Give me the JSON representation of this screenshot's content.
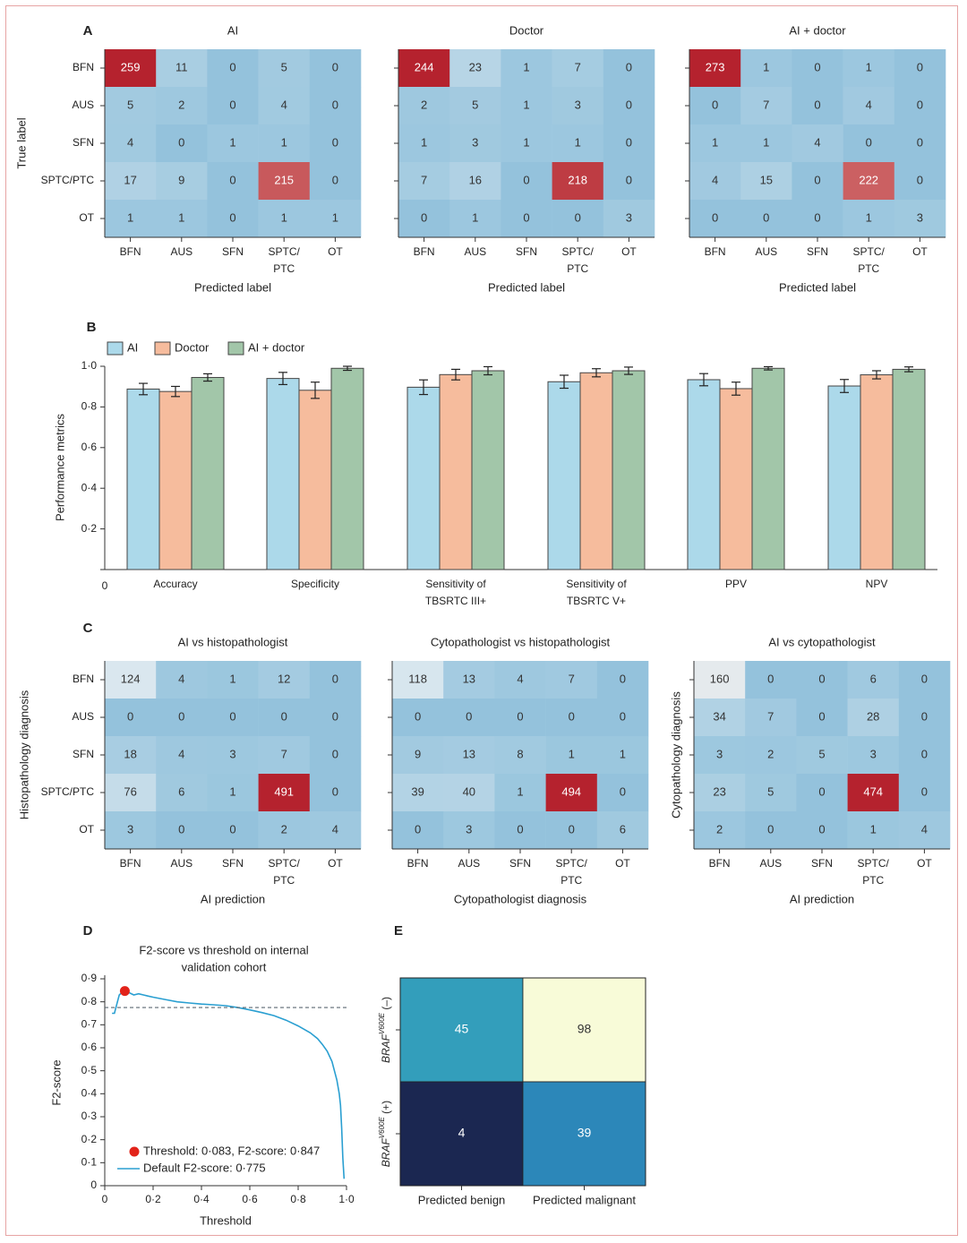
{
  "panel_letters": [
    "A",
    "B",
    "C",
    "D",
    "E"
  ],
  "chart_data": [
    {
      "type": "heatmap",
      "panel": "A",
      "title": "AI",
      "xlabel": "Predicted label",
      "ylabel": "True label",
      "x_categories": [
        "BFN",
        "AUS",
        "SFN",
        "SPTC/ PTC",
        "OT"
      ],
      "y_categories": [
        "BFN",
        "AUS",
        "SFN",
        "SPTC/PTC",
        "OT"
      ],
      "values": [
        [
          259,
          11,
          0,
          5,
          0
        ],
        [
          5,
          2,
          0,
          4,
          0
        ],
        [
          4,
          0,
          1,
          1,
          0
        ],
        [
          17,
          9,
          0,
          215,
          0
        ],
        [
          1,
          1,
          0,
          1,
          1
        ]
      ]
    },
    {
      "type": "heatmap",
      "panel": "A",
      "title": "Doctor",
      "xlabel": "Predicted label",
      "ylabel": "",
      "x_categories": [
        "BFN",
        "AUS",
        "SFN",
        "SPTC/ PTC",
        "OT"
      ],
      "y_categories": [],
      "values": [
        [
          244,
          23,
          1,
          7,
          0
        ],
        [
          2,
          5,
          1,
          3,
          0
        ],
        [
          1,
          3,
          1,
          1,
          0
        ],
        [
          7,
          16,
          0,
          218,
          0
        ],
        [
          0,
          1,
          0,
          0,
          3
        ]
      ]
    },
    {
      "type": "heatmap",
      "panel": "A",
      "title": "AI + doctor",
      "xlabel": "Predicted label",
      "ylabel": "",
      "x_categories": [
        "BFN",
        "AUS",
        "SFN",
        "SPTC/ PTC",
        "OT"
      ],
      "y_categories": [],
      "values": [
        [
          273,
          1,
          0,
          1,
          0
        ],
        [
          0,
          7,
          0,
          4,
          0
        ],
        [
          1,
          1,
          4,
          0,
          0
        ],
        [
          4,
          15,
          0,
          222,
          0
        ],
        [
          0,
          0,
          0,
          1,
          3
        ]
      ]
    },
    {
      "type": "bar",
      "panel": "B",
      "ylabel": "Performance metrics",
      "categories": [
        "Accuracy",
        "Specificity",
        "Sensitivity of TBSRTC III+",
        "Sensitivity of TBSRTC V+",
        "PPV",
        "NPV"
      ],
      "series": [
        {
          "name": "AI",
          "color": "#acd9ea",
          "values": [
            0.888,
            0.94,
            0.897,
            0.924,
            0.934,
            0.903
          ],
          "error": [
            0.028,
            0.03,
            0.036,
            0.032,
            0.03,
            0.032
          ]
        },
        {
          "name": "Doctor",
          "color": "#f6bc9d",
          "values": [
            0.876,
            0.882,
            0.959,
            0.968,
            0.89,
            0.958
          ],
          "error": [
            0.025,
            0.04,
            0.026,
            0.02,
            0.032,
            0.02
          ]
        },
        {
          "name": "AI + doctor",
          "color": "#a2c6a9",
          "values": [
            0.945,
            0.99,
            0.978,
            0.978,
            0.99,
            0.985
          ],
          "error": [
            0.018,
            0.01,
            0.02,
            0.018,
            0.008,
            0.012
          ]
        }
      ],
      "ylim": [
        0,
        1.0
      ],
      "yticks": [
        "0",
        "0·2",
        "0·4",
        "0·6",
        "0·8",
        "1·0"
      ],
      "legend_position": "top-left"
    },
    {
      "type": "heatmap",
      "panel": "C",
      "title": "AI vs histopathologist",
      "xlabel": "AI prediction",
      "ylabel": "Histopathology diagnosis",
      "x_categories": [
        "BFN",
        "AUS",
        "SFN",
        "SPTC/ PTC",
        "OT"
      ],
      "y_categories": [
        "BFN",
        "AUS",
        "SFN",
        "SPTC/PTC",
        "OT"
      ],
      "values": [
        [
          124,
          4,
          1,
          12,
          0
        ],
        [
          0,
          0,
          0,
          0,
          0
        ],
        [
          18,
          4,
          3,
          7,
          0
        ],
        [
          76,
          6,
          1,
          491,
          0
        ],
        [
          3,
          0,
          0,
          2,
          4
        ]
      ]
    },
    {
      "type": "heatmap",
      "panel": "C",
      "title": "Cytopathologist vs histopathologist",
      "xlabel": "Cytopathologist diagnosis",
      "ylabel": "",
      "x_categories": [
        "BFN",
        "AUS",
        "SFN",
        "SPTC/ PTC",
        "OT"
      ],
      "y_categories": [],
      "values": [
        [
          118,
          13,
          4,
          7,
          0
        ],
        [
          0,
          0,
          0,
          0,
          0
        ],
        [
          9,
          13,
          8,
          1,
          1
        ],
        [
          39,
          40,
          1,
          494,
          0
        ],
        [
          0,
          3,
          0,
          0,
          6
        ]
      ]
    },
    {
      "type": "heatmap",
      "panel": "C",
      "title": "AI vs cytopathologist",
      "xlabel": "AI prediction",
      "ylabel": "Cytopathology diagnosis",
      "x_categories": [
        "BFN",
        "AUS",
        "SFN",
        "SPTC/ PTC",
        "OT"
      ],
      "y_categories": [],
      "values": [
        [
          160,
          0,
          0,
          6,
          0
        ],
        [
          34,
          7,
          0,
          28,
          0
        ],
        [
          3,
          2,
          5,
          3,
          0
        ],
        [
          23,
          5,
          0,
          474,
          0
        ],
        [
          2,
          0,
          0,
          1,
          4
        ]
      ]
    },
    {
      "type": "line",
      "panel": "D",
      "title": "F2-score vs threshold on internal validation cohort",
      "xlabel": "Threshold",
      "ylabel": "F2-score",
      "xlim": [
        0,
        1.0
      ],
      "ylim": [
        0,
        0.9
      ],
      "xticks": [
        "0",
        "0·2",
        "0·4",
        "0·6",
        "0·8",
        "1·0"
      ],
      "yticks": [
        "0",
        "0·1",
        "0·2",
        "0·3",
        "0·4",
        "0·5",
        "0·6",
        "0·7",
        "0·8",
        "0·9"
      ],
      "series": [
        {
          "color": "#2a9fd1",
          "x": [
            0.03,
            0.04,
            0.05,
            0.06,
            0.07,
            0.083,
            0.1,
            0.12,
            0.14,
            0.16,
            0.18,
            0.2,
            0.25,
            0.3,
            0.35,
            0.4,
            0.45,
            0.5,
            0.55,
            0.6,
            0.65,
            0.7,
            0.75,
            0.8,
            0.85,
            0.88,
            0.9,
            0.92,
            0.94,
            0.95,
            0.96,
            0.97,
            0.975,
            0.98,
            0.985,
            0.99
          ],
          "y": [
            0.75,
            0.75,
            0.79,
            0.83,
            0.84,
            0.847,
            0.84,
            0.83,
            0.835,
            0.83,
            0.825,
            0.82,
            0.81,
            0.8,
            0.795,
            0.79,
            0.787,
            0.783,
            0.775,
            0.765,
            0.753,
            0.74,
            0.72,
            0.695,
            0.665,
            0.64,
            0.615,
            0.585,
            0.54,
            0.5,
            0.46,
            0.4,
            0.35,
            0.25,
            0.12,
            0.03
          ]
        }
      ],
      "highlight_point": {
        "x": 0.083,
        "y": 0.847,
        "color": "#e2231a"
      },
      "default_line": {
        "y": 0.775
      },
      "legend": [
        "Threshold: 0·083, F2-score: 0·847",
        "Default F2-score: 0·775"
      ],
      "legend_position": "lower-left"
    },
    {
      "type": "heatmap",
      "panel": "E",
      "x_categories": [
        "Predicted benign",
        "Predicted malignant"
      ],
      "y_categories": [
        {
          "italic": "BRAF",
          "sup": "V600E",
          "suffix": " (–)"
        },
        {
          "italic": "BRAF",
          "sup": "V600E",
          "suffix": " (+)"
        }
      ],
      "values": [
        [
          45,
          98
        ],
        [
          4,
          39
        ]
      ],
      "cell_colors": [
        [
          "#339ebb",
          "#f8fbd8"
        ],
        [
          "#1b2751",
          "#2c87b9"
        ]
      ]
    }
  ]
}
